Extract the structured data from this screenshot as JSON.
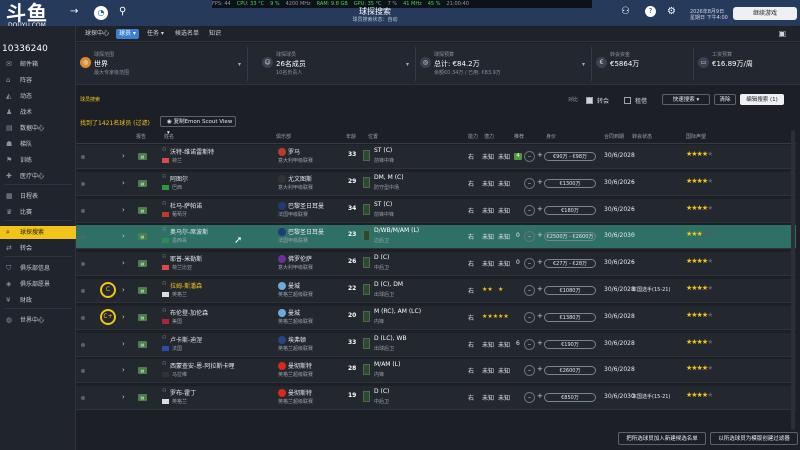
{
  "app": {
    "logo_text": "斗鱼",
    "logo_sub": "DOUYU.COM",
    "room_id": "10336240"
  },
  "statsbar": [
    "FPS: 44",
    "CPU: 33 °C",
    "9 %",
    "4200 MHz",
    "RAM: 9.8 GB",
    "GPU: 35 °C",
    "7 %",
    "41 MHz",
    "45 %",
    "21:00:40"
  ],
  "page_header": {
    "title": "球探搜索",
    "subtitle": "球员搜索状态：自动"
  },
  "date": {
    "line1": "2026年8月9日",
    "line2": "星期日 下午4:00"
  },
  "continue_label": "继续游戏",
  "sidebar": {
    "items": [
      {
        "icon": "inbox-icon",
        "label": "邮件箱"
      },
      {
        "icon": "home-icon",
        "label": "阵容"
      },
      {
        "icon": "shirt-icon",
        "label": "动态"
      },
      {
        "icon": "tactics-icon",
        "label": "战术"
      },
      {
        "icon": "data-icon",
        "label": "数据中心"
      },
      {
        "icon": "team-icon",
        "label": "梯队"
      },
      {
        "icon": "training-icon",
        "label": "训练"
      },
      {
        "icon": "medical-icon",
        "label": "医疗中心"
      },
      {
        "icon": "calendar-icon",
        "label": "日程表"
      },
      {
        "icon": "trophy-icon",
        "label": "比赛"
      },
      {
        "icon": "scout-icon",
        "label": "球探搜索"
      },
      {
        "icon": "transfer-icon",
        "label": "转会"
      },
      {
        "icon": "club-icon",
        "label": "俱乐部信息"
      },
      {
        "icon": "vision-icon",
        "label": "俱乐部愿景"
      },
      {
        "icon": "finance-icon",
        "label": "财政"
      },
      {
        "icon": "world-icon",
        "label": "世界中心"
      }
    ],
    "active_index": 10
  },
  "nav": {
    "items": [
      "球探中心",
      "球员",
      "任务",
      "候选名单",
      "知识"
    ],
    "active_index": 1
  },
  "filters": [
    {
      "icon": "globe-icon",
      "label": "球探范围",
      "value": "世界",
      "sub": "最大专家级范围"
    },
    {
      "icon": "people-icon",
      "label": "球探球员",
      "value": "26名成员",
      "sub": "10名负责人"
    },
    {
      "icon": "coins-icon",
      "label": "球探预算",
      "value": "总计: €84.2万",
      "sub": "余额€0.34万 / 已用: €83.9万"
    },
    {
      "icon": "money-icon",
      "label": "转会资金",
      "value": "€5864万",
      "sub": ""
    },
    {
      "icon": "wallet-icon",
      "label": "工资预算",
      "value": "€16.89万/周",
      "sub": ""
    }
  ],
  "search": {
    "note": "球员搜索",
    "filter_label": "对比",
    "chk1": "转会",
    "chk2": "租借",
    "quick_search": "快速搜索",
    "clear": "清除",
    "edit_search": "编辑搜索",
    "edit_count": "1"
  },
  "results": {
    "found": "找到了1421名球员 (过滤)",
    "view": "复制Emon Scout View"
  },
  "columns": [
    "报告",
    "姓名",
    "俱乐部",
    "年龄",
    "位置",
    "能力",
    "潜力",
    "推荐",
    "身价",
    "合同到期",
    "转会状态",
    "国际声望"
  ],
  "players": [
    {
      "rec": "",
      "name": "沃特-维诺雷斯特",
      "nat": "荷兰",
      "club": "罗马",
      "league": "意大利甲级联赛",
      "age": "33",
      "pos": "ST (C)",
      "role": "前锋中锋",
      "foot": "右",
      "ca": "未知",
      "pa": "未知",
      "badge": "4",
      "price": "€90万 - €98万",
      "contract": "30/6/2028",
      "transfer": "-",
      "stars": 3.5,
      "flag": "#e04848",
      "crest": "#c0392b"
    },
    {
      "rec": "",
      "name": "阿图尔",
      "nat": "巴西",
      "club": "尤文图斯",
      "league": "意大利甲级联赛",
      "age": "29",
      "pos": "DM, M (C)",
      "role": "防守型中场",
      "foot": "右",
      "ca": "未知",
      "pa": "未知",
      "badge": "",
      "price": "€1300万",
      "contract": "30/6/2026",
      "transfer": "-",
      "stars": 3.5,
      "flag": "#2a9a3a",
      "crest": "#333333"
    },
    {
      "rec": "",
      "name": "杜马-萨帕诺",
      "nat": "葡萄牙",
      "club": "巴黎圣日耳曼",
      "league": "法国甲级联赛",
      "age": "34",
      "pos": "ST (C)",
      "role": "前锋中锋",
      "foot": "右",
      "ca": "未知",
      "pa": "未知",
      "badge": "",
      "price": "€180万",
      "contract": "30/6/2026",
      "transfer": "-",
      "stars": 3.5,
      "flag": "#c0392b",
      "crest": "#1d3b78"
    },
    {
      "rec": "",
      "name": "奥马尔-席波斯",
      "nat": "墨西哥",
      "club": "巴黎圣日耳曼",
      "league": "法国甲级联赛",
      "age": "23",
      "pos": "D/WB/M/AM (L)",
      "role": "边后卫",
      "foot": "右",
      "ca": "未知",
      "pa": "未知",
      "badge": "0",
      "price": "€2500万 - €2600万",
      "contract": "30/6/2030",
      "transfer": "-",
      "stars": 3,
      "flag": "#2e8b57",
      "crest": "#1d3b78"
    },
    {
      "rec": "",
      "name": "耶普-米勒斯",
      "nat": "荷兰比亚",
      "club": "佛罗伦萨",
      "league": "意大利甲级联赛",
      "age": "26",
      "pos": "D (C)",
      "role": "中后卫",
      "foot": "右",
      "ca": "未知",
      "pa": "未知",
      "badge": "0",
      "price": "€27万 - €28万",
      "contract": "30/6/2026",
      "transfer": "-",
      "stars": 3.5,
      "flag": "#e04848",
      "crest": "#6b2fa0"
    },
    {
      "rec": "C",
      "name": "拉姆-斯潘森",
      "nat": "英格兰",
      "club": "曼城",
      "league": "英格兰超级联赛",
      "age": "22",
      "pos": "D (C), DM",
      "role": "出球后卫",
      "foot": "右",
      "ca": "★★",
      "pa": "★",
      "badge": "",
      "price": "€1080万",
      "contract": "30/6/2028",
      "transfer": "本国选手(15-21)",
      "stars": 3.5,
      "flag": "#dddddd",
      "crest": "#6cabdd"
    },
    {
      "rec": "C+",
      "name": "布伦登-加伦森",
      "nat": "美国",
      "club": "曼城",
      "league": "英格兰超级联赛",
      "age": "20",
      "pos": "M (RC), AM (LC)",
      "role": "内锋",
      "foot": "右",
      "ca": "★★★",
      "pa": "★★",
      "badge": "",
      "price": "€1380万",
      "contract": "30/6/2028",
      "transfer": "-",
      "stars": 3.5,
      "flag": "#b22234",
      "crest": "#6cabdd"
    },
    {
      "rec": "",
      "name": "卢卡斯-迪涅",
      "nat": "法国",
      "club": "埃弗顿",
      "league": "英格兰超级联赛",
      "age": "33",
      "pos": "D (LC), WB",
      "role": "出球后卫",
      "foot": "右",
      "ca": "未知",
      "pa": "未知",
      "badge": "6",
      "price": "€190万",
      "contract": "30/6/2028",
      "transfer": "-",
      "stars": 3.5,
      "flag": "#2c4bb0",
      "crest": "#274488"
    },
    {
      "rec": "",
      "name": "西蒙查安-恩-阿拉斯卡哩",
      "nat": "马拉维",
      "club": "曼彻斯特",
      "league": "英格兰超级联赛",
      "age": "28",
      "pos": "M/AM (L)",
      "role": "内锋",
      "foot": "右",
      "ca": "未知",
      "pa": "未知",
      "badge": "",
      "price": "€2600万",
      "contract": "30/6/2028",
      "transfer": "-",
      "stars": 3.5,
      "flag": "#333333",
      "crest": "#da291c"
    },
    {
      "rec": "",
      "name": "罗布-霍丁",
      "nat": "英格兰",
      "club": "曼彻斯特",
      "league": "英格兰超级联赛",
      "age": "19",
      "pos": "D (C)",
      "role": "中后卫",
      "foot": "右",
      "ca": "未知",
      "pa": "未知",
      "badge": "",
      "price": "€850万",
      "contract": "30/6/2030",
      "transfer": "本国选手(15-21)",
      "stars": 3.5,
      "flag": "#dddddd",
      "crest": "#da291c"
    }
  ],
  "selected_index": 3,
  "bottom": {
    "add_list": "把所选球员加入新建候选名单",
    "scout_report": "以所选球员为模版创建过滤器"
  }
}
